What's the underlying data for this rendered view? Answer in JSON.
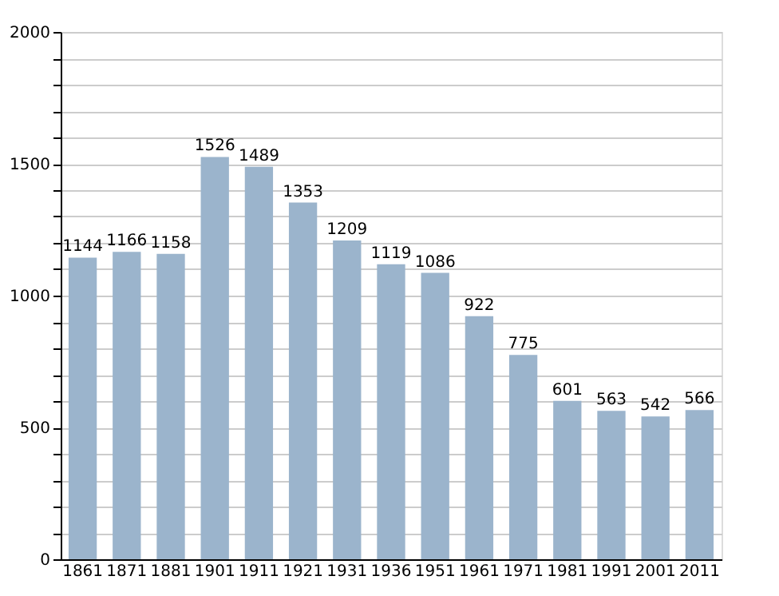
{
  "chart_data": {
    "type": "bar",
    "categories": [
      "1861",
      "1871",
      "1881",
      "1901",
      "1911",
      "1921",
      "1931",
      "1936",
      "1951",
      "1961",
      "1971",
      "1981",
      "1991",
      "2001",
      "2011"
    ],
    "values": [
      1144,
      1166,
      1158,
      1526,
      1489,
      1353,
      1209,
      1119,
      1086,
      922,
      775,
      601,
      563,
      542,
      566
    ],
    "color": "#9bb4cc",
    "ylim": [
      0,
      2000
    ],
    "yticks": [
      0,
      {
        "value": 100,
        "label": null
      },
      {
        "value": 200,
        "label": null
      },
      {
        "value": 300,
        "label": null
      },
      {
        "value": 400,
        "label": null
      },
      500,
      {
        "value": 600,
        "label": null
      },
      {
        "value": 700,
        "label": null
      },
      {
        "value": 800,
        "label": null
      },
      {
        "value": 900,
        "label": null
      },
      1000,
      {
        "value": 1100,
        "label": null
      },
      {
        "value": 1200,
        "label": null
      },
      {
        "value": 1300,
        "label": null
      },
      {
        "value": 1400,
        "label": null
      },
      1500,
      {
        "value": 1600,
        "label": null
      },
      {
        "value": 1700,
        "label": null
      },
      {
        "value": 1800,
        "label": null
      },
      {
        "value": 1900,
        "label": null
      },
      2000
    ],
    "grid": "y",
    "data_labels": true
  }
}
